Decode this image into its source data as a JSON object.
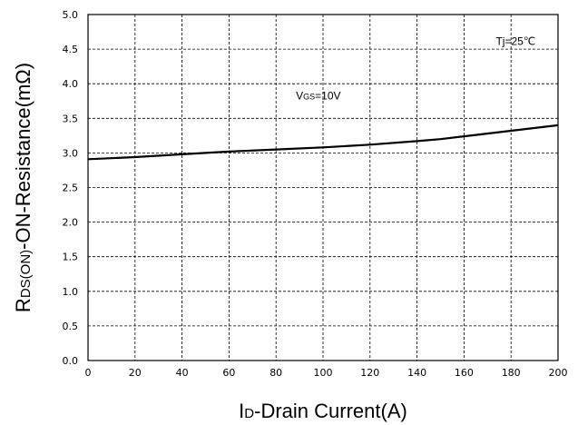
{
  "chart_data": {
    "type": "line",
    "xlabel": {
      "main": "I",
      "sub": "D",
      "rest": "-Drain Current(A)"
    },
    "ylabel": {
      "main": "R",
      "sub": "DS(ON)",
      "rest": "-ON-Resistance(mΩ)"
    },
    "xlim": [
      0,
      200
    ],
    "ylim": [
      0,
      5.0
    ],
    "x_ticks": [
      0,
      20,
      40,
      60,
      80,
      100,
      120,
      140,
      160,
      180,
      200
    ],
    "x_tick_labels": [
      "0",
      "20",
      "40",
      "60",
      "80",
      "100",
      "120",
      "140",
      "160",
      "180",
      "200"
    ],
    "y_ticks": [
      0,
      0.5,
      1.0,
      1.5,
      2.0,
      2.5,
      3.0,
      3.5,
      4.0,
      4.5,
      5.0
    ],
    "y_tick_labels": [
      "0.0",
      "0.5",
      "1.0",
      "1.5",
      "2.0",
      "2.5",
      "3.0",
      "3.5",
      "4.0",
      "4.5",
      "5.0"
    ],
    "grid": true,
    "legend": "none",
    "series": [
      {
        "color": "#000000",
        "x": [
          0,
          20,
          40,
          60,
          80,
          100,
          120,
          140,
          150,
          160,
          180,
          200
        ],
        "values": [
          2.91,
          2.94,
          2.98,
          3.02,
          3.05,
          3.08,
          3.12,
          3.17,
          3.2,
          3.24,
          3.32,
          3.4
        ]
      }
    ],
    "annotations": [
      {
        "main": "V",
        "sub": "GS",
        "rest": "=10V",
        "x": 98,
        "y": 3.77
      },
      {
        "main": "Tj=25℃",
        "sub": "",
        "rest": "",
        "x": 182,
        "y": 4.56
      }
    ]
  }
}
